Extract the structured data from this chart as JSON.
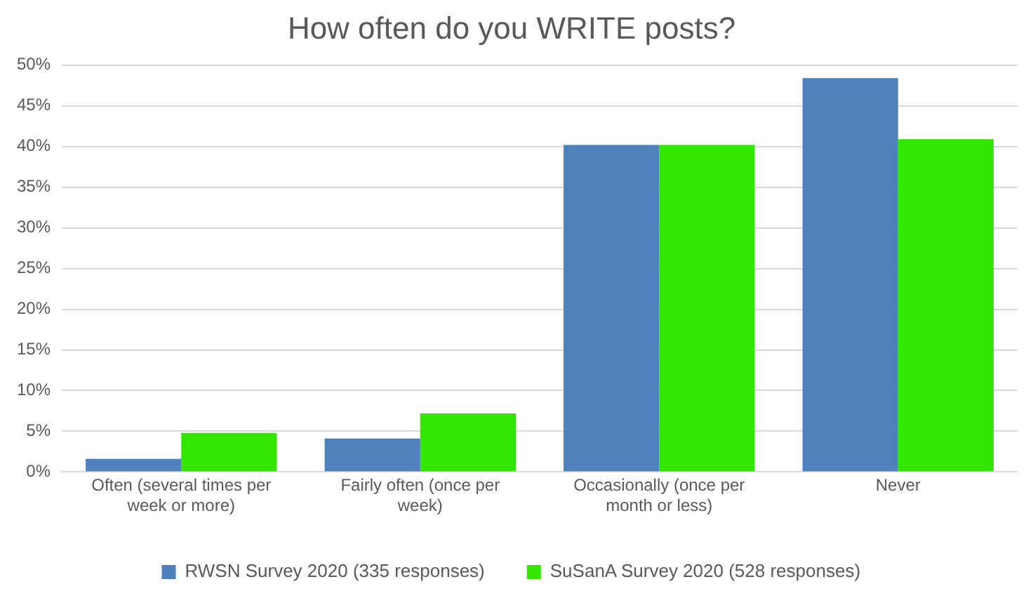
{
  "chart_data": {
    "type": "bar",
    "title": "How often do you WRITE posts?",
    "categories": [
      "Often (several times per week or more)",
      "Fairly often (once per week)",
      "Occasionally (once per month or less)",
      "Never"
    ],
    "series": [
      {
        "name": "RWSN Survey 2020 (335 responses)",
        "color": "#4f81bd",
        "values": [
          1.6,
          4.1,
          40.2,
          48.4
        ]
      },
      {
        "name": "SuSanA Survey 2020 (528 responses)",
        "color": "#33e600",
        "values": [
          4.8,
          7.2,
          40.2,
          40.9
        ]
      }
    ],
    "ylim": [
      0,
      50
    ],
    "yticks": [
      {
        "value": 0,
        "label": "0%"
      },
      {
        "value": 5,
        "label": "5%"
      },
      {
        "value": 10,
        "label": "10%"
      },
      {
        "value": 15,
        "label": "15%"
      },
      {
        "value": 20,
        "label": "20%"
      },
      {
        "value": 25,
        "label": "25%"
      },
      {
        "value": 30,
        "label": "30%"
      },
      {
        "value": 35,
        "label": "35%"
      },
      {
        "value": 40,
        "label": "40%"
      },
      {
        "value": 45,
        "label": "45%"
      },
      {
        "value": 50,
        "label": "50%"
      }
    ],
    "grid": "y",
    "legend": "bottom"
  }
}
